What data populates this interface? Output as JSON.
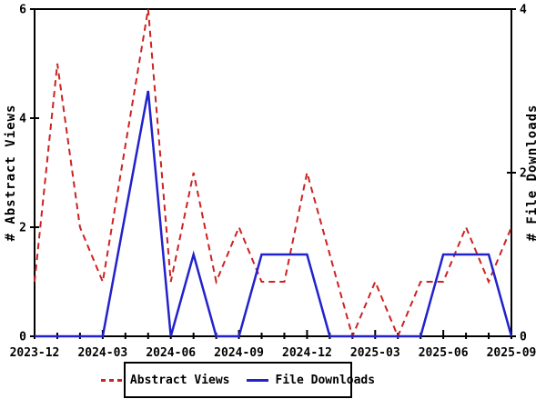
{
  "chart_data": {
    "type": "line",
    "title": "",
    "x": [
      "2023-12",
      "2024-01",
      "2024-02",
      "2024-03",
      "2024-04",
      "2024-05",
      "2024-06",
      "2024-07",
      "2024-08",
      "2024-09",
      "2024-10",
      "2024-11",
      "2024-12",
      "2025-01",
      "2025-02",
      "2025-03",
      "2025-04",
      "2025-05",
      "2025-06",
      "2025-07",
      "2025-08",
      "2025-09"
    ],
    "x_tick_label_indices": [
      0,
      3,
      6,
      9,
      12,
      15,
      18,
      21
    ],
    "x_tick_labels": [
      "2023-12",
      "2024-03",
      "2024-06",
      "2024-09",
      "2024-12",
      "2025-03",
      "2025-06",
      "2025-09"
    ],
    "series": [
      {
        "name": "Abstract Views",
        "axis": "left",
        "color": "#cc2222",
        "style": "dashed",
        "values": [
          1,
          5,
          2,
          1,
          3.5,
          6,
          1,
          3,
          1,
          2,
          1,
          1,
          3,
          1.5,
          0,
          1,
          0,
          1,
          1,
          2,
          1,
          2
        ]
      },
      {
        "name": "File Downloads",
        "axis": "right",
        "color": "#2222cc",
        "style": "solid",
        "values": [
          0,
          0,
          0,
          0,
          1.5,
          3,
          0,
          1,
          0,
          0,
          1,
          1,
          1,
          0,
          0,
          0,
          0,
          0,
          1,
          1,
          1,
          0
        ]
      }
    ],
    "left_axis": {
      "label": "# Abstract Views",
      "ticks": [
        0,
        2,
        4,
        6
      ],
      "range": [
        0,
        6
      ]
    },
    "right_axis": {
      "label": "# File Downloads",
      "ticks": [
        0,
        2,
        4
      ],
      "range": [
        0,
        4
      ]
    },
    "grid": false,
    "legend_position": "bottom-center",
    "frame_color": "#000000",
    "background_color": "#ffffff"
  }
}
